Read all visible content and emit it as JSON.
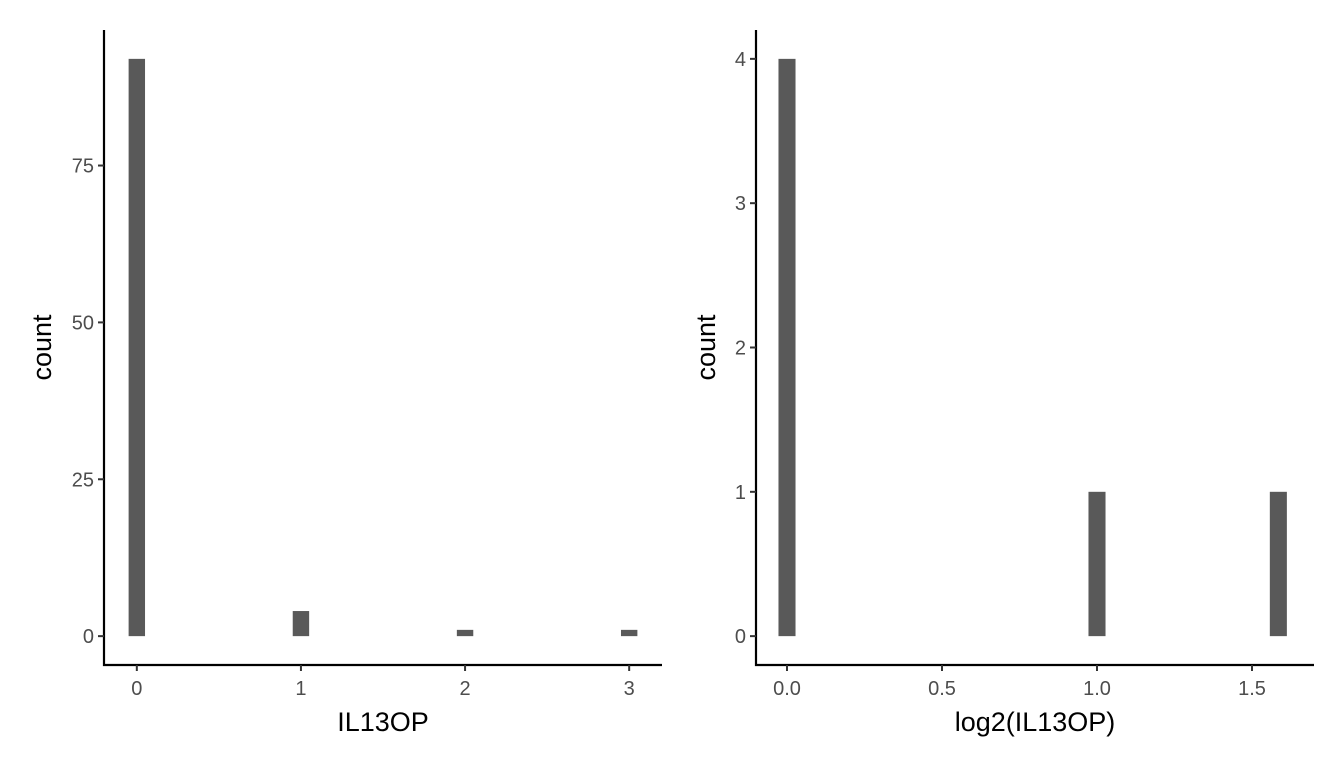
{
  "chart_data": [
    {
      "type": "bar",
      "title": "",
      "xlabel": "IL13OP",
      "ylabel": "count",
      "bar_color": "#595959",
      "xlim": [
        -0.2,
        3.2
      ],
      "ylim": [
        -4.6,
        96.6
      ],
      "x_ticks": [
        0,
        1,
        2,
        3
      ],
      "x_tick_labels": [
        "0",
        "1",
        "2",
        "3"
      ],
      "y_ticks": [
        0,
        25,
        50,
        75
      ],
      "y_tick_labels": [
        "0",
        "25",
        "50",
        "75"
      ],
      "bin_width": 0.1,
      "x": [
        0,
        1,
        2,
        3
      ],
      "values": [
        92,
        4,
        1,
        1
      ],
      "grid": false,
      "legend": "none"
    },
    {
      "type": "bar",
      "title": "",
      "xlabel": "log2(IL13OP)",
      "ylabel": "count",
      "bar_color": "#595959",
      "xlim": [
        -0.1,
        1.7
      ],
      "ylim": [
        -0.2,
        4.2
      ],
      "x_ticks": [
        0,
        0.5,
        1,
        1.5
      ],
      "x_tick_labels": [
        "0.0",
        "0.5",
        "1.0",
        "1.5"
      ],
      "y_ticks": [
        0,
        1,
        2,
        3,
        4
      ],
      "y_tick_labels": [
        "0",
        "1",
        "2",
        "3",
        "4"
      ],
      "bin_width": 0.055,
      "x": [
        0,
        1,
        1.585
      ],
      "values": [
        4,
        1,
        1
      ],
      "grid": false,
      "legend": "none"
    }
  ]
}
